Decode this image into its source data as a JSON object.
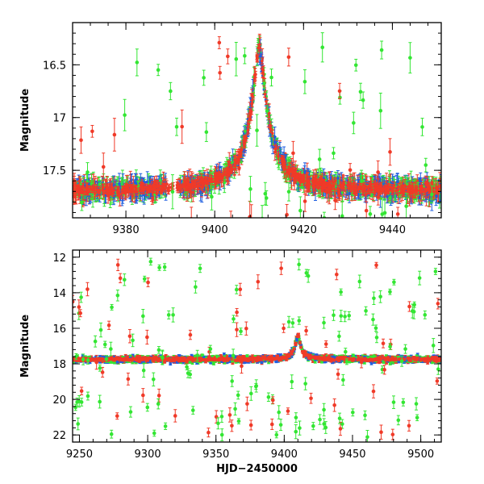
{
  "chart_data": [
    {
      "type": "scatter",
      "title": "",
      "xlabel": "",
      "ylabel": "Magnitude",
      "xlim": [
        9368,
        9451
      ],
      "ylim": [
        17.95,
        16.1
      ],
      "xticks": [
        9380,
        9400,
        9420,
        9440
      ],
      "xtick_labels": [
        "9380",
        "9400",
        "9420",
        "9440"
      ],
      "yticks": [
        16.5,
        17,
        17.5
      ],
      "ytick_labels": [
        "16.5",
        "17",
        "17.5"
      ],
      "series": [
        {
          "name": "blue",
          "color": "#1f5fe0"
        },
        {
          "name": "green",
          "color": "#33e633"
        },
        {
          "name": "red",
          "color": "#f03a28"
        }
      ],
      "baseline_mag": 17.7,
      "peak": {
        "hjd": 9410.0,
        "mag": 16.32
      }
    },
    {
      "type": "scatter",
      "title": "",
      "xlabel": "HJD−2450000",
      "ylabel": "Magnitude",
      "xlim": [
        9245,
        9515
      ],
      "ylim": [
        22.4,
        11.6
      ],
      "xticks": [
        9250,
        9300,
        9350,
        9400,
        9450,
        9500
      ],
      "xtick_labels": [
        "9250",
        "9300",
        "9350",
        "9400",
        "9450",
        "9500"
      ],
      "yticks": [
        12,
        14,
        16,
        18,
        20,
        22
      ],
      "ytick_labels": [
        "12",
        "14",
        "16",
        "18",
        "20",
        "22"
      ],
      "series": [
        {
          "name": "blue",
          "color": "#1f5fe0"
        },
        {
          "name": "green",
          "color": "#33e633"
        },
        {
          "name": "red",
          "color": "#f03a28"
        }
      ],
      "baseline_mag": 17.75,
      "peak": {
        "hjd": 9410.0,
        "mag": 16.35
      }
    }
  ]
}
